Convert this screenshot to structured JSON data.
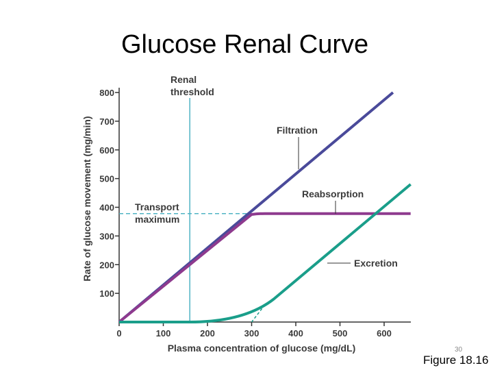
{
  "slide": {
    "title": "Glucose Renal Curve",
    "slide_number": "30",
    "caption": "Figure 18.16"
  },
  "colors": {
    "filtration": "#4a4a9a",
    "reabsorption": "#8e3a8e",
    "excretion": "#1a9e8a",
    "renal_threshold_line": "#4fb3c4",
    "transport_max_line": "#4fb3c4",
    "axis": "#333333"
  },
  "chart_data": {
    "type": "line",
    "xlabel": "Plasma concentration of glucose (mg/dL)",
    "ylabel": "Rate of glucose movement (mg/min)",
    "xlim": [
      0,
      660
    ],
    "ylim": [
      0,
      800
    ],
    "x_ticks": [
      0,
      100,
      200,
      300,
      400,
      500,
      600
    ],
    "y_ticks": [
      100,
      200,
      300,
      400,
      500,
      600,
      700,
      800
    ],
    "grid": false,
    "series": [
      {
        "name": "Filtration",
        "color": "#4a4a9a",
        "x": [
          0,
          620
        ],
        "y": [
          0,
          800
        ]
      },
      {
        "name": "Reabsorption",
        "color": "#8e3a8e",
        "x": [
          0,
          300,
          330,
          660
        ],
        "y": [
          0,
          375,
          378,
          378
        ]
      },
      {
        "name": "Excretion",
        "color": "#1a9e8a",
        "x": [
          0,
          160,
          200,
          250,
          300,
          330,
          350,
          660
        ],
        "y": [
          0,
          0,
          5,
          15,
          35,
          60,
          80,
          480
        ]
      }
    ],
    "reference_lines": [
      {
        "label": "Renal threshold",
        "orientation": "vertical",
        "value": 160,
        "style": "solid"
      },
      {
        "label": "Transport maximum",
        "orientation": "horizontal",
        "value": 378,
        "style": "dashed"
      }
    ],
    "annotations": [
      {
        "text": "Renal",
        "line2": "threshold"
      },
      {
        "text": "Filtration"
      },
      {
        "text": "Reabsorption"
      },
      {
        "text": "Excretion"
      },
      {
        "text": "Transport",
        "line2": "maximum"
      }
    ]
  }
}
